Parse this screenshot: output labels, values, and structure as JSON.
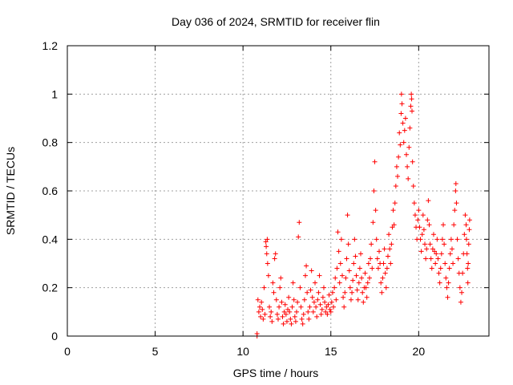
{
  "chart_data": {
    "type": "scatter",
    "title": "Day 036 of 2024, SRMTID for receiver flin",
    "xlabel": "GPS time / hours",
    "ylabel": "SRMTID / TECUs",
    "xlim": [
      0,
      24
    ],
    "ylim": [
      0,
      1.2
    ],
    "xticks": [
      0,
      5,
      10,
      15,
      20
    ],
    "xtick_labels": [
      "0",
      "5",
      "10",
      "15",
      "20"
    ],
    "yticks": [
      0,
      0.2,
      0.4,
      0.6,
      0.8,
      1,
      1.2
    ],
    "ytick_labels": [
      "0",
      "0.2",
      "0.4",
      "0.6",
      "0.8",
      "1",
      "1.2"
    ],
    "grid": true,
    "marker": "+",
    "color": "#ff0000",
    "series": [
      {
        "name": "SRMTID",
        "points": [
          [
            10.8,
            0.0
          ],
          [
            10.8,
            0.01
          ],
          [
            10.85,
            0.15
          ],
          [
            10.9,
            0.1
          ],
          [
            10.95,
            0.12
          ],
          [
            11.0,
            0.08
          ],
          [
            11.05,
            0.14
          ],
          [
            11.1,
            0.11
          ],
          [
            11.15,
            0.07
          ],
          [
            11.2,
            0.2
          ],
          [
            11.25,
            0.09
          ],
          [
            11.3,
            0.39
          ],
          [
            11.32,
            0.37
          ],
          [
            11.35,
            0.34
          ],
          [
            11.38,
            0.4
          ],
          [
            11.4,
            0.3
          ],
          [
            11.45,
            0.25
          ],
          [
            11.5,
            0.12
          ],
          [
            11.55,
            0.08
          ],
          [
            11.6,
            0.1
          ],
          [
            11.65,
            0.06
          ],
          [
            11.7,
            0.22
          ],
          [
            11.75,
            0.18
          ],
          [
            11.8,
            0.32
          ],
          [
            11.85,
            0.34
          ],
          [
            11.9,
            0.15
          ],
          [
            11.95,
            0.09
          ],
          [
            12.0,
            0.07
          ],
          [
            12.05,
            0.12
          ],
          [
            12.1,
            0.2
          ],
          [
            12.15,
            0.24
          ],
          [
            12.2,
            0.14
          ],
          [
            12.25,
            0.08
          ],
          [
            12.3,
            0.05
          ],
          [
            12.35,
            0.1
          ],
          [
            12.4,
            0.13
          ],
          [
            12.45,
            0.09
          ],
          [
            12.5,
            0.06
          ],
          [
            12.55,
            0.11
          ],
          [
            12.6,
            0.16
          ],
          [
            12.65,
            0.1
          ],
          [
            12.7,
            0.07
          ],
          [
            12.75,
            0.05
          ],
          [
            12.8,
            0.12
          ],
          [
            12.85,
            0.22
          ],
          [
            12.9,
            0.15
          ],
          [
            12.95,
            0.08
          ],
          [
            13.0,
            0.06
          ],
          [
            13.05,
            0.1
          ],
          [
            13.1,
            0.14
          ],
          [
            13.15,
            0.41
          ],
          [
            13.2,
            0.47
          ],
          [
            13.25,
            0.2
          ],
          [
            13.3,
            0.12
          ],
          [
            13.35,
            0.07
          ],
          [
            13.4,
            0.05
          ],
          [
            13.45,
            0.09
          ],
          [
            13.5,
            0.15
          ],
          [
            13.55,
            0.25
          ],
          [
            13.6,
            0.29
          ],
          [
            13.65,
            0.18
          ],
          [
            13.7,
            0.1
          ],
          [
            13.75,
            0.07
          ],
          [
            13.8,
            0.12
          ],
          [
            13.85,
            0.19
          ],
          [
            13.9,
            0.27
          ],
          [
            13.95,
            0.16
          ],
          [
            14.0,
            0.1
          ],
          [
            14.05,
            0.14
          ],
          [
            14.1,
            0.22
          ],
          [
            14.15,
            0.12
          ],
          [
            14.2,
            0.08
          ],
          [
            14.25,
            0.15
          ],
          [
            14.3,
            0.18
          ],
          [
            14.35,
            0.25
          ],
          [
            14.4,
            0.13
          ],
          [
            14.45,
            0.09
          ],
          [
            14.5,
            0.11
          ],
          [
            14.55,
            0.16
          ],
          [
            14.6,
            0.2
          ],
          [
            14.65,
            0.14
          ],
          [
            14.7,
            0.1
          ],
          [
            14.75,
            0.12
          ],
          [
            14.8,
            0.09
          ],
          [
            14.85,
            0.13
          ],
          [
            14.9,
            0.17
          ],
          [
            14.95,
            0.11
          ],
          [
            15.0,
            0.1
          ],
          [
            15.05,
            0.14
          ],
          [
            15.1,
            0.18
          ],
          [
            15.15,
            0.12
          ],
          [
            15.2,
            0.2
          ],
          [
            15.25,
            0.24
          ],
          [
            15.3,
            0.15
          ],
          [
            15.35,
            0.28
          ],
          [
            15.4,
            0.43
          ],
          [
            15.45,
            0.35
          ],
          [
            15.5,
            0.22
          ],
          [
            15.55,
            0.3
          ],
          [
            15.6,
            0.4
          ],
          [
            15.65,
            0.25
          ],
          [
            15.7,
            0.16
          ],
          [
            15.75,
            0.12
          ],
          [
            15.8,
            0.18
          ],
          [
            15.85,
            0.24
          ],
          [
            15.9,
            0.32
          ],
          [
            15.95,
            0.5
          ],
          [
            16.0,
            0.38
          ],
          [
            16.05,
            0.27
          ],
          [
            16.1,
            0.2
          ],
          [
            16.15,
            0.15
          ],
          [
            16.2,
            0.18
          ],
          [
            16.25,
            0.23
          ],
          [
            16.3,
            0.3
          ],
          [
            16.35,
            0.4
          ],
          [
            16.4,
            0.33
          ],
          [
            16.45,
            0.25
          ],
          [
            16.5,
            0.19
          ],
          [
            16.55,
            0.15
          ],
          [
            16.6,
            0.22
          ],
          [
            16.65,
            0.28
          ],
          [
            16.7,
            0.34
          ],
          [
            16.75,
            0.24
          ],
          [
            16.8,
            0.18
          ],
          [
            16.85,
            0.14
          ],
          [
            16.9,
            0.2
          ],
          [
            16.95,
            0.26
          ],
          [
            17.0,
            0.2
          ],
          [
            17.05,
            0.16
          ],
          [
            17.1,
            0.22
          ],
          [
            17.15,
            0.3
          ],
          [
            17.2,
            0.24
          ],
          [
            17.25,
            0.32
          ],
          [
            17.3,
            0.38
          ],
          [
            17.35,
            0.28
          ],
          [
            17.4,
            0.47
          ],
          [
            17.45,
            0.6
          ],
          [
            17.5,
            0.72
          ],
          [
            17.55,
            0.52
          ],
          [
            17.6,
            0.4
          ],
          [
            17.65,
            0.32
          ],
          [
            17.7,
            0.28
          ],
          [
            17.75,
            0.35
          ],
          [
            17.8,
            0.3
          ],
          [
            17.85,
            0.22
          ],
          [
            17.9,
            0.18
          ],
          [
            17.95,
            0.24
          ],
          [
            18.0,
            0.3
          ],
          [
            18.05,
            0.36
          ],
          [
            18.1,
            0.26
          ],
          [
            18.15,
            0.2
          ],
          [
            18.2,
            0.28
          ],
          [
            18.25,
            0.33
          ],
          [
            18.3,
            0.42
          ],
          [
            18.35,
            0.36
          ],
          [
            18.4,
            0.3
          ],
          [
            18.45,
            0.38
          ],
          [
            18.5,
            0.45
          ],
          [
            18.55,
            0.52
          ],
          [
            18.6,
            0.46
          ],
          [
            18.65,
            0.55
          ],
          [
            18.7,
            0.62
          ],
          [
            18.75,
            0.7
          ],
          [
            18.8,
            0.66
          ],
          [
            18.85,
            0.74
          ],
          [
            18.9,
            0.84
          ],
          [
            18.95,
            0.79
          ],
          [
            19.0,
            0.92
          ],
          [
            19.02,
            1.0
          ],
          [
            19.05,
            0.96
          ],
          [
            19.1,
            0.88
          ],
          [
            19.15,
            0.8
          ],
          [
            19.2,
            0.85
          ],
          [
            19.25,
            0.9
          ],
          [
            19.3,
            0.75
          ],
          [
            19.35,
            0.7
          ],
          [
            19.4,
            0.65
          ],
          [
            19.45,
            0.78
          ],
          [
            19.5,
            0.86
          ],
          [
            19.55,
            0.95
          ],
          [
            19.58,
            1.0
          ],
          [
            19.6,
            0.98
          ],
          [
            19.62,
            0.93
          ],
          [
            19.65,
            0.72
          ],
          [
            19.7,
            0.62
          ],
          [
            19.75,
            0.55
          ],
          [
            19.8,
            0.5
          ],
          [
            19.85,
            0.45
          ],
          [
            19.9,
            0.4
          ],
          [
            19.95,
            0.48
          ],
          [
            20.0,
            0.52
          ],
          [
            20.05,
            0.45
          ],
          [
            20.1,
            0.4
          ],
          [
            20.15,
            0.35
          ],
          [
            20.2,
            0.42
          ],
          [
            20.25,
            0.5
          ],
          [
            20.3,
            0.44
          ],
          [
            20.35,
            0.38
          ],
          [
            20.4,
            0.32
          ],
          [
            20.45,
            0.36
          ],
          [
            20.5,
            0.48
          ],
          [
            20.55,
            0.56
          ],
          [
            20.6,
            0.46
          ],
          [
            20.65,
            0.38
          ],
          [
            20.7,
            0.32
          ],
          [
            20.75,
            0.28
          ],
          [
            20.8,
            0.36
          ],
          [
            20.85,
            0.42
          ],
          [
            20.9,
            0.35
          ],
          [
            20.95,
            0.3
          ],
          [
            21.0,
            0.34
          ],
          [
            21.05,
            0.4
          ],
          [
            21.1,
            0.32
          ],
          [
            21.15,
            0.26
          ],
          [
            21.2,
            0.22
          ],
          [
            21.25,
            0.28
          ],
          [
            21.3,
            0.34
          ],
          [
            21.35,
            0.4
          ],
          [
            21.4,
            0.46
          ],
          [
            21.45,
            0.38
          ],
          [
            21.5,
            0.3
          ],
          [
            21.55,
            0.24
          ],
          [
            21.6,
            0.2
          ],
          [
            21.65,
            0.16
          ],
          [
            21.7,
            0.22
          ],
          [
            21.75,
            0.28
          ],
          [
            21.8,
            0.34
          ],
          [
            21.85,
            0.4
          ],
          [
            21.9,
            0.36
          ],
          [
            21.95,
            0.3
          ],
          [
            22.0,
            0.46
          ],
          [
            22.05,
            0.52
          ],
          [
            22.1,
            0.6
          ],
          [
            22.12,
            0.63
          ],
          [
            22.15,
            0.55
          ],
          [
            22.2,
            0.4
          ],
          [
            22.25,
            0.32
          ],
          [
            22.3,
            0.26
          ],
          [
            22.35,
            0.2
          ],
          [
            22.4,
            0.14
          ],
          [
            22.45,
            0.18
          ],
          [
            22.5,
            0.26
          ],
          [
            22.55,
            0.34
          ],
          [
            22.6,
            0.42
          ],
          [
            22.65,
            0.5
          ],
          [
            22.7,
            0.46
          ],
          [
            22.72,
            0.4
          ],
          [
            22.75,
            0.34
          ],
          [
            22.78,
            0.28
          ],
          [
            22.8,
            0.22
          ],
          [
            22.82,
            0.3
          ],
          [
            22.85,
            0.38
          ],
          [
            22.88,
            0.44
          ],
          [
            22.9,
            0.48
          ]
        ]
      }
    ]
  }
}
